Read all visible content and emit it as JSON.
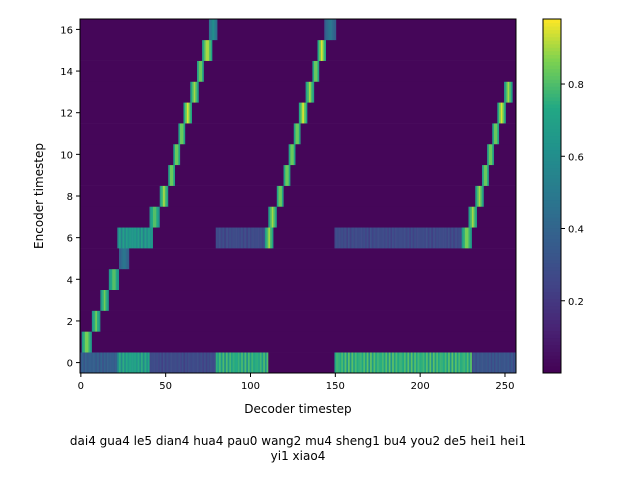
{
  "chart_data": {
    "type": "heatmap",
    "title": "",
    "xlabel": "Decoder timestep",
    "ylabel": "Encoder timestep",
    "xlim": [
      -0.5,
      256.5
    ],
    "ylim": [
      -0.5,
      16.5
    ],
    "xticks": [
      0,
      50,
      100,
      150,
      200,
      250
    ],
    "yticks": [
      0,
      2,
      4,
      6,
      8,
      10,
      12,
      14,
      16
    ],
    "colormap": "viridis",
    "colorbar": {
      "vmin": 0.0,
      "vmax": 0.98,
      "ticks": [
        0.2,
        0.4,
        0.6,
        0.8
      ],
      "tick_labels": [
        "0.2",
        "0.4",
        "0.6",
        "0.8"
      ]
    },
    "background_value": 0.02,
    "alignment_path": [
      {
        "encoder": 1,
        "decoder_start": 1,
        "decoder_end": 6,
        "peak": 0.9
      },
      {
        "encoder": 2,
        "decoder_start": 7,
        "decoder_end": 11,
        "peak": 0.85
      },
      {
        "encoder": 3,
        "decoder_start": 12,
        "decoder_end": 16,
        "peak": 0.85
      },
      {
        "encoder": 4,
        "decoder_start": 17,
        "decoder_end": 22,
        "peak": 0.85
      },
      {
        "encoder": 5,
        "decoder_start": 23,
        "decoder_end": 28,
        "peak": 0.5
      },
      {
        "encoder": 6,
        "decoder_start": 22,
        "decoder_end": 42,
        "peak": 0.7
      },
      {
        "encoder": 7,
        "decoder_start": 41,
        "decoder_end": 46,
        "peak": 0.85
      },
      {
        "encoder": 8,
        "decoder_start": 47,
        "decoder_end": 51,
        "peak": 0.9
      },
      {
        "encoder": 9,
        "decoder_start": 52,
        "decoder_end": 55,
        "peak": 0.9
      },
      {
        "encoder": 10,
        "decoder_start": 55,
        "decoder_end": 58,
        "peak": 0.9
      },
      {
        "encoder": 11,
        "decoder_start": 58,
        "decoder_end": 61,
        "peak": 0.9
      },
      {
        "encoder": 12,
        "decoder_start": 61,
        "decoder_end": 65,
        "peak": 0.95
      },
      {
        "encoder": 13,
        "decoder_start": 65,
        "decoder_end": 69,
        "peak": 0.9
      },
      {
        "encoder": 14,
        "decoder_start": 69,
        "decoder_end": 72,
        "peak": 0.9
      },
      {
        "encoder": 15,
        "decoder_start": 72,
        "decoder_end": 77,
        "peak": 0.95
      },
      {
        "encoder": 16,
        "decoder_start": 76,
        "decoder_end": 80,
        "peak": 0.6
      },
      {
        "encoder": 0,
        "decoder_start": 80,
        "decoder_end": 110,
        "peak": 0.8
      },
      {
        "encoder": 6,
        "decoder_start": 80,
        "decoder_end": 110,
        "peak": 0.3
      },
      {
        "encoder": 6,
        "decoder_start": 109,
        "decoder_end": 113,
        "peak": 0.9
      },
      {
        "encoder": 7,
        "decoder_start": 111,
        "decoder_end": 115,
        "peak": 0.9
      },
      {
        "encoder": 8,
        "decoder_start": 116,
        "decoder_end": 119,
        "peak": 0.9
      },
      {
        "encoder": 9,
        "decoder_start": 120,
        "decoder_end": 123,
        "peak": 0.9
      },
      {
        "encoder": 10,
        "decoder_start": 123,
        "decoder_end": 126,
        "peak": 0.9
      },
      {
        "encoder": 11,
        "decoder_start": 126,
        "decoder_end": 129,
        "peak": 0.9
      },
      {
        "encoder": 12,
        "decoder_start": 129,
        "decoder_end": 133,
        "peak": 0.95
      },
      {
        "encoder": 13,
        "decoder_start": 133,
        "decoder_end": 137,
        "peak": 0.9
      },
      {
        "encoder": 14,
        "decoder_start": 137,
        "decoder_end": 140,
        "peak": 0.9
      },
      {
        "encoder": 15,
        "decoder_start": 140,
        "decoder_end": 144,
        "peak": 0.95
      },
      {
        "encoder": 16,
        "decoder_start": 144,
        "decoder_end": 150,
        "peak": 0.5
      },
      {
        "encoder": 0,
        "decoder_start": 150,
        "decoder_end": 230,
        "peak": 0.82
      },
      {
        "encoder": 6,
        "decoder_start": 150,
        "decoder_end": 230,
        "peak": 0.3
      },
      {
        "encoder": 6,
        "decoder_start": 225,
        "decoder_end": 230,
        "peak": 0.9
      },
      {
        "encoder": 7,
        "decoder_start": 229,
        "decoder_end": 233,
        "peak": 0.9
      },
      {
        "encoder": 8,
        "decoder_start": 233,
        "decoder_end": 237,
        "peak": 0.9
      },
      {
        "encoder": 9,
        "decoder_start": 237,
        "decoder_end": 240,
        "peak": 0.9
      },
      {
        "encoder": 10,
        "decoder_start": 240,
        "decoder_end": 243,
        "peak": 0.9
      },
      {
        "encoder": 11,
        "decoder_start": 243,
        "decoder_end": 246,
        "peak": 0.9
      },
      {
        "encoder": 12,
        "decoder_start": 246,
        "decoder_end": 250,
        "peak": 0.95
      },
      {
        "encoder": 13,
        "decoder_start": 250,
        "decoder_end": 254,
        "peak": 0.9
      },
      {
        "encoder": 0,
        "decoder_start": 0,
        "decoder_end": 22,
        "peak": 0.4
      },
      {
        "encoder": 0,
        "decoder_start": 22,
        "decoder_end": 40,
        "peak": 0.75
      },
      {
        "encoder": 0,
        "decoder_start": 40,
        "decoder_end": 80,
        "peak": 0.3
      },
      {
        "encoder": 0,
        "decoder_start": 230,
        "decoder_end": 256,
        "peak": 0.35
      }
    ]
  },
  "caption": {
    "line1": "dai4 gua4 le5 dian4 hua4 pau0 wang2 mu4 sheng1 bu4 you2 de5 hei1 hei1",
    "line2": "yi1 xiao4"
  }
}
